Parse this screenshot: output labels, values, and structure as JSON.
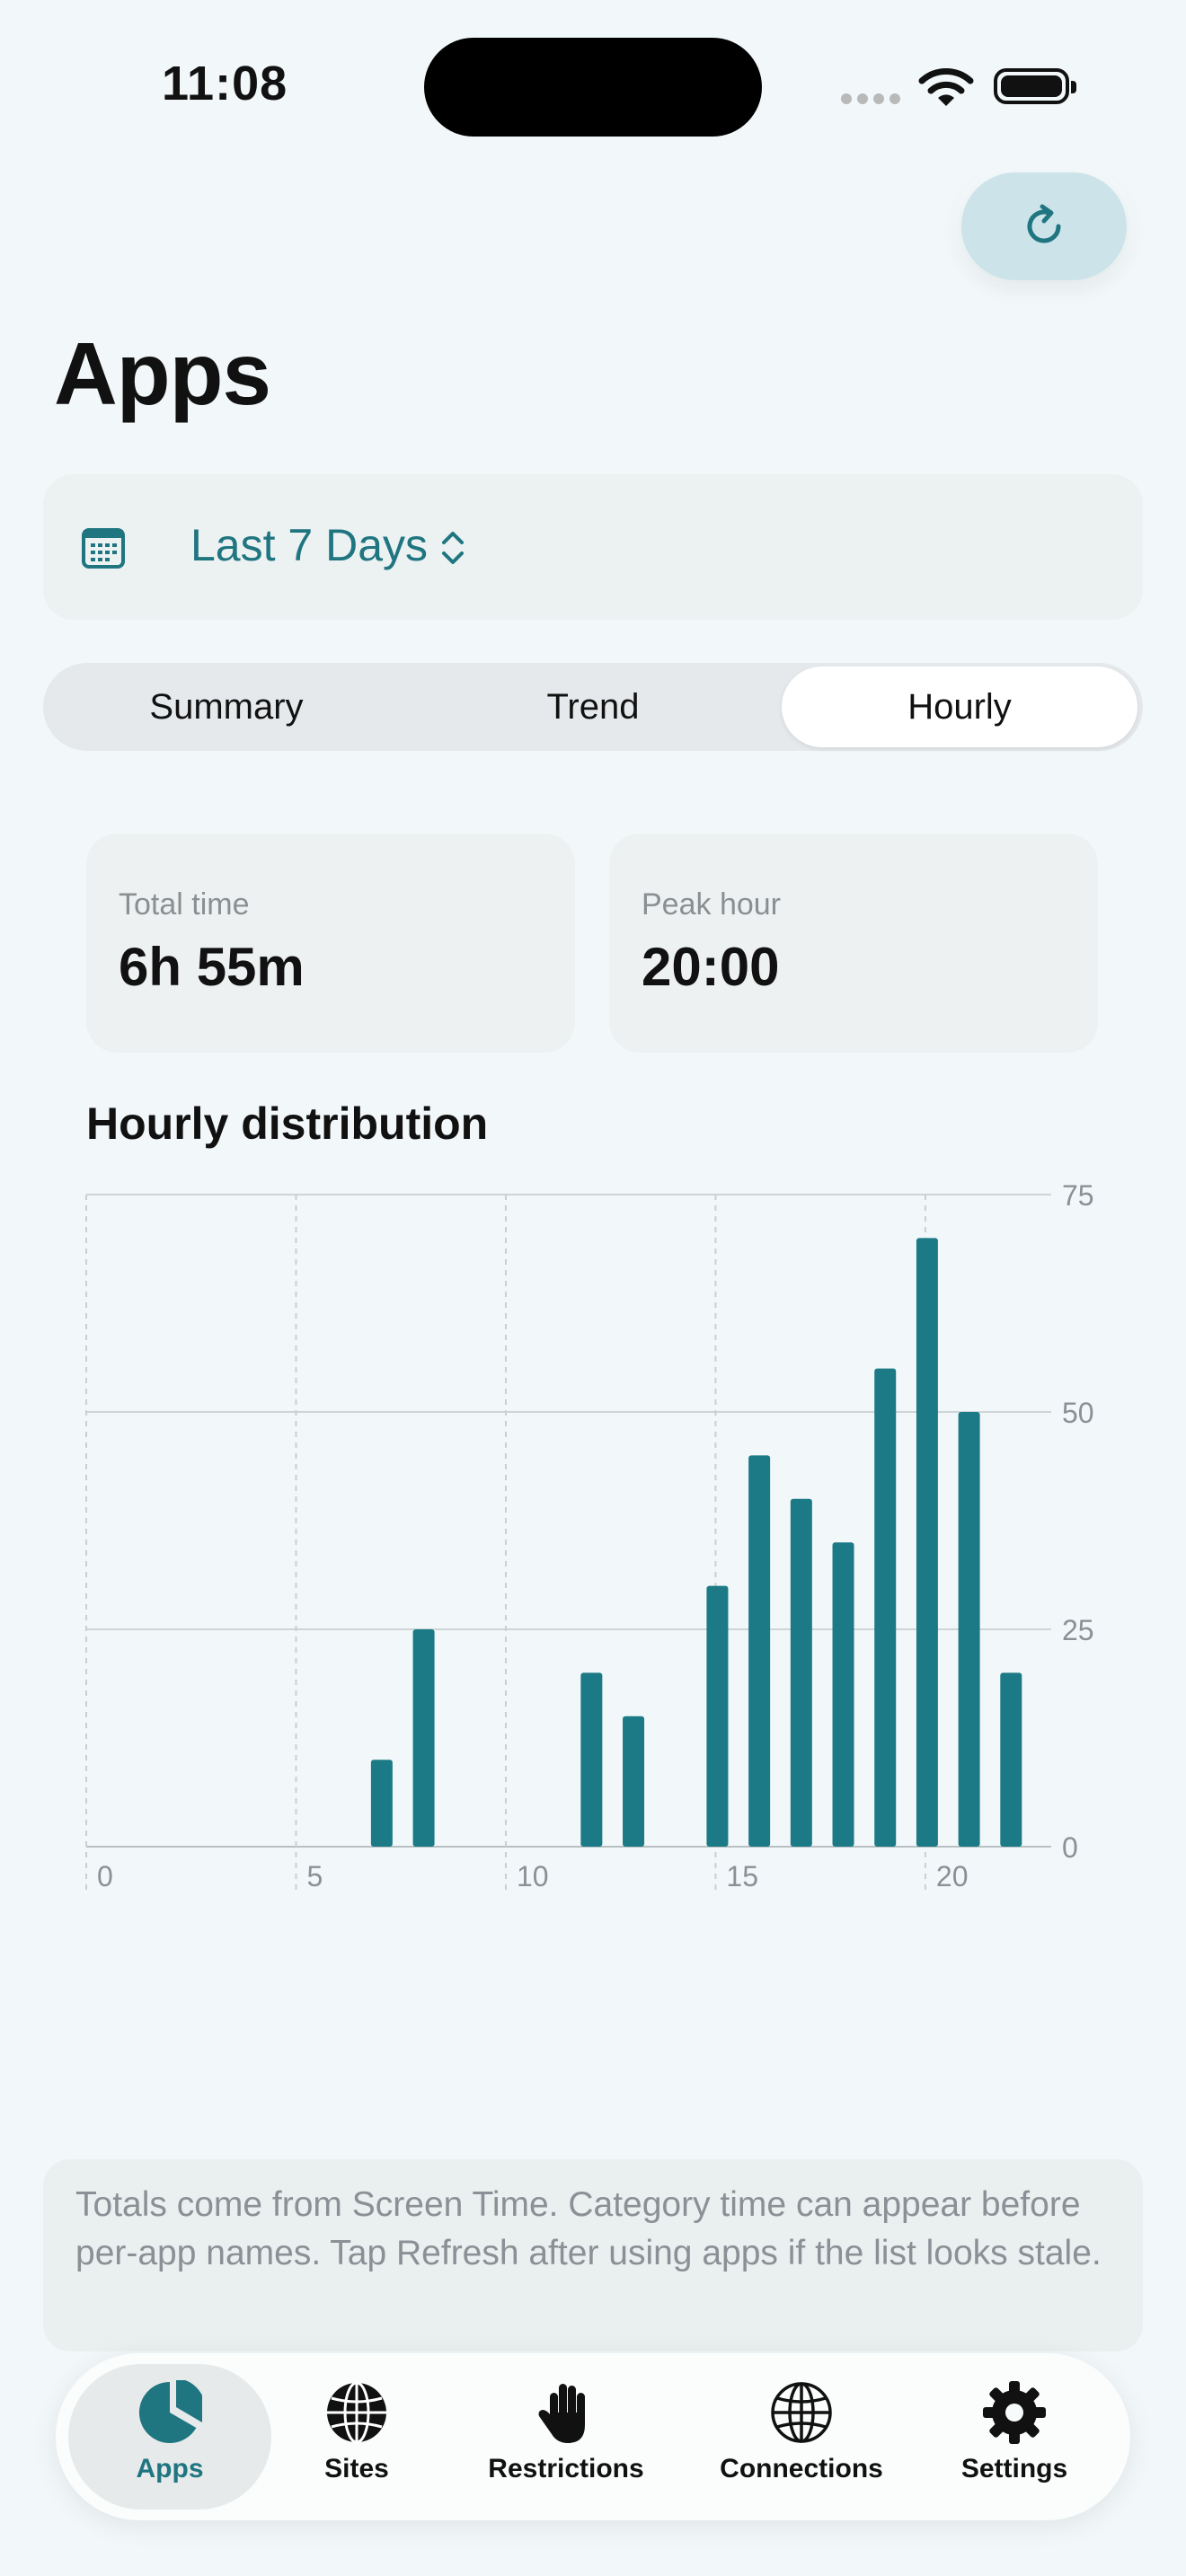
{
  "status": {
    "time": "11:08"
  },
  "header": {
    "title": "Apps"
  },
  "range": {
    "label": "Last 7 Days"
  },
  "segments": [
    {
      "label": "Summary",
      "active": false
    },
    {
      "label": "Trend",
      "active": false
    },
    {
      "label": "Hourly",
      "active": true
    }
  ],
  "stats": {
    "total": {
      "label": "Total time",
      "value": "6h 55m"
    },
    "peak": {
      "label": "Peak hour",
      "value": "20:00"
    }
  },
  "chart_title": "Hourly distribution",
  "chart_data": {
    "type": "bar",
    "x": [
      7,
      8,
      12,
      13,
      15,
      16,
      17,
      18,
      19,
      20,
      21,
      22
    ],
    "values": [
      10,
      25,
      20,
      15,
      30,
      45,
      40,
      35,
      55,
      70,
      50,
      20
    ],
    "xlim": [
      0,
      23
    ],
    "ylim": [
      0,
      75
    ],
    "xticks": [
      "0",
      "5",
      "10",
      "15",
      "20"
    ],
    "yticks": [
      "0",
      "25",
      "50",
      "75"
    ],
    "grid": true,
    "color": "#1c7a86"
  },
  "note": "Totals come from Screen Time. Category time can appear before per-app names. Tap Refresh after using apps if the list looks stale.",
  "tabs": [
    {
      "label": "Apps",
      "icon": "pie-chart-icon",
      "active": true
    },
    {
      "label": "Sites",
      "icon": "globe-icon",
      "active": false
    },
    {
      "label": "Restrictions",
      "icon": "hand-icon",
      "active": false
    },
    {
      "label": "Connections",
      "icon": "network-globe-icon",
      "active": false
    },
    {
      "label": "Settings",
      "icon": "gear-icon",
      "active": false
    }
  ],
  "colors": {
    "accent": "#1f7580",
    "bar": "#1c7a86"
  }
}
